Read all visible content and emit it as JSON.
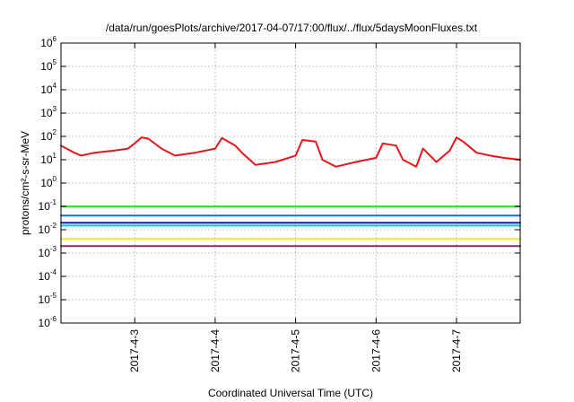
{
  "chart_data": {
    "type": "line",
    "title": "/data/run/goesPlots/archive/2017-04-07/17:00/flux/../flux/5daysMoonFluxes.txt",
    "xlabel": "Coordinated Universal Time (UTC)",
    "ylabel": "protons/cm²-s-sr-MeV",
    "yscale": "log",
    "ylim": [
      1e-06,
      1000000.0
    ],
    "y_ticks": [
      {
        "exp": "-6"
      },
      {
        "exp": "-5"
      },
      {
        "exp": "-4"
      },
      {
        "exp": "-3"
      },
      {
        "exp": "-2"
      },
      {
        "exp": "-1"
      },
      {
        "exp": "0"
      },
      {
        "exp": "1"
      },
      {
        "exp": "2"
      },
      {
        "exp": "3"
      },
      {
        "exp": "4"
      },
      {
        "exp": "5"
      },
      {
        "exp": "6"
      }
    ],
    "xlim": [
      "2017-04-02 02:00",
      "2017-04-07 19:00"
    ],
    "x_ticks": [
      "2017-4-3",
      "2017-4-4",
      "2017-4-5",
      "2017-4-6",
      "2017-4-7"
    ],
    "grid": true,
    "series": [
      {
        "color": "#e8161b",
        "x": [
          "2017-04-02 02:00",
          "2017-04-02 06:00",
          "2017-04-02 08:00",
          "2017-04-02 12:00",
          "2017-04-02 18:00",
          "2017-04-02 22:00",
          "2017-04-03 00:00",
          "2017-04-03 02:00",
          "2017-04-03 04:00",
          "2017-04-03 08:00",
          "2017-04-03 12:00",
          "2017-04-03 18:00",
          "2017-04-04 00:00",
          "2017-04-04 02:00",
          "2017-04-04 06:00",
          "2017-04-04 08:00",
          "2017-04-04 12:00",
          "2017-04-04 18:00",
          "2017-04-05 00:00",
          "2017-04-05 02:00",
          "2017-04-05 06:00",
          "2017-04-05 08:00",
          "2017-04-05 12:00",
          "2017-04-05 18:00",
          "2017-04-06 00:00",
          "2017-04-06 02:00",
          "2017-04-06 06:00",
          "2017-04-06 08:00",
          "2017-04-06 12:00",
          "2017-04-06 14:00",
          "2017-04-06 18:00",
          "2017-04-06 22:00",
          "2017-04-07 00:00",
          "2017-04-07 02:00",
          "2017-04-07 06:00",
          "2017-04-07 10:00",
          "2017-04-07 14:00",
          "2017-04-07 19:00"
        ],
        "values": [
          40,
          20,
          15,
          20,
          25,
          30,
          50,
          90,
          80,
          30,
          15,
          20,
          30,
          85,
          40,
          20,
          6,
          8,
          15,
          70,
          60,
          10,
          5,
          8,
          12,
          50,
          40,
          10,
          5,
          30,
          8,
          25,
          90,
          60,
          20,
          15,
          12,
          10
        ]
      },
      {
        "color": "#22ee22",
        "x": [
          "2017-04-02 02:00",
          "2017-04-07 19:00"
        ],
        "values": [
          0.1,
          0.1
        ]
      },
      {
        "color": "#1a6be8",
        "x": [
          "2017-04-02 02:00",
          "2017-04-07 19:00"
        ],
        "values": [
          0.04,
          0.04
        ]
      },
      {
        "color": "#11c8c8",
        "x": [
          "2017-04-02 02:00",
          "2017-04-07 19:00"
        ],
        "values": [
          0.015,
          0.015
        ]
      },
      {
        "color": "#1515c8",
        "x": [
          "2017-04-02 02:00",
          "2017-04-07 19:00"
        ],
        "values": [
          0.02,
          0.02
        ]
      },
      {
        "color": "#f2f200",
        "x": [
          "2017-04-02 02:00",
          "2017-04-07 19:00"
        ],
        "values": [
          0.004,
          0.004
        ]
      },
      {
        "color": "#8b2a6b",
        "x": [
          "2017-04-02 02:00",
          "2017-04-07 19:00"
        ],
        "values": [
          0.002,
          0.002
        ]
      }
    ]
  }
}
